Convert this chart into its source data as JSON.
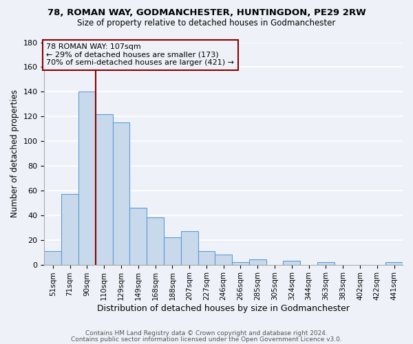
{
  "title1": "78, ROMAN WAY, GODMANCHESTER, HUNTINGDON, PE29 2RW",
  "title2": "Size of property relative to detached houses in Godmanchester",
  "xlabel": "Distribution of detached houses by size in Godmanchester",
  "ylabel": "Number of detached properties",
  "bin_labels": [
    "51sqm",
    "71sqm",
    "90sqm",
    "110sqm",
    "129sqm",
    "149sqm",
    "168sqm",
    "188sqm",
    "207sqm",
    "227sqm",
    "246sqm",
    "266sqm",
    "285sqm",
    "305sqm",
    "324sqm",
    "344sqm",
    "363sqm",
    "383sqm",
    "402sqm",
    "422sqm",
    "441sqm"
  ],
  "bar_heights": [
    11,
    57,
    140,
    122,
    115,
    46,
    38,
    22,
    27,
    11,
    8,
    2,
    4,
    0,
    3,
    0,
    2,
    0,
    0,
    0,
    2
  ],
  "bar_color": "#c9d9ec",
  "bar_edge_color": "#5b9bd5",
  "vline_color": "#8b0000",
  "annotation_line1": "78 ROMAN WAY: 107sqm",
  "annotation_line2": "← 29% of detached houses are smaller (173)",
  "annotation_line3": "70% of semi-detached houses are larger (421) →",
  "annotation_box_color": "#8b0000",
  "ylim": [
    0,
    180
  ],
  "yticks": [
    0,
    20,
    40,
    60,
    80,
    100,
    120,
    140,
    160,
    180
  ],
  "footer1": "Contains HM Land Registry data © Crown copyright and database right 2024.",
  "footer2": "Contains public sector information licensed under the Open Government Licence v3.0.",
  "background_color": "#eef2f8",
  "grid_color": "#ffffff"
}
